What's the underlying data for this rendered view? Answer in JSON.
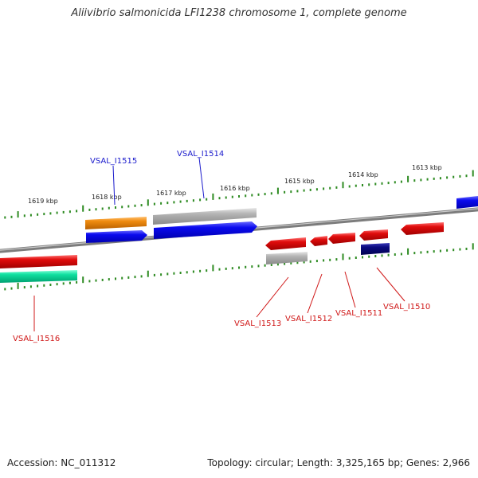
{
  "title": "Aliivibrio salmonicida LFI1238 chromosome 1, complete genome",
  "footer": {
    "accession": "Accession: NC_011312",
    "summary": "Topology: circular; Length: 3,325,165 bp; Genes: 2,966"
  },
  "colors": {
    "backbone": "#8a8a8a",
    "tick": "#2e8b22",
    "forward_label": "#1a1acc",
    "reverse_label": "#d01818",
    "blue_gene": "#0a0aee",
    "orange_gene": "#f08c10",
    "gray_gene": "#b0b0b0",
    "red_gene": "#e00c0c",
    "navy_gene": "#0a0a80",
    "teal_gene": "#10e0a0"
  },
  "scale_labels": [
    "1619 kbp",
    "1618 kbp",
    "1617 kbp",
    "1616 kbp",
    "1615 kbp",
    "1614 kbp",
    "1613 kbp"
  ],
  "gene_labels": [
    {
      "text": "VSAL_I1515",
      "strand": "forward"
    },
    {
      "text": "VSAL_I1514",
      "strand": "forward"
    },
    {
      "text": "VSAL_I1516",
      "strand": "reverse"
    },
    {
      "text": "VSAL_I1513",
      "strand": "reverse"
    },
    {
      "text": "VSAL_I1512",
      "strand": "reverse"
    },
    {
      "text": "VSAL_I1511",
      "strand": "reverse"
    },
    {
      "text": "VSAL_I1510",
      "strand": "reverse"
    }
  ]
}
